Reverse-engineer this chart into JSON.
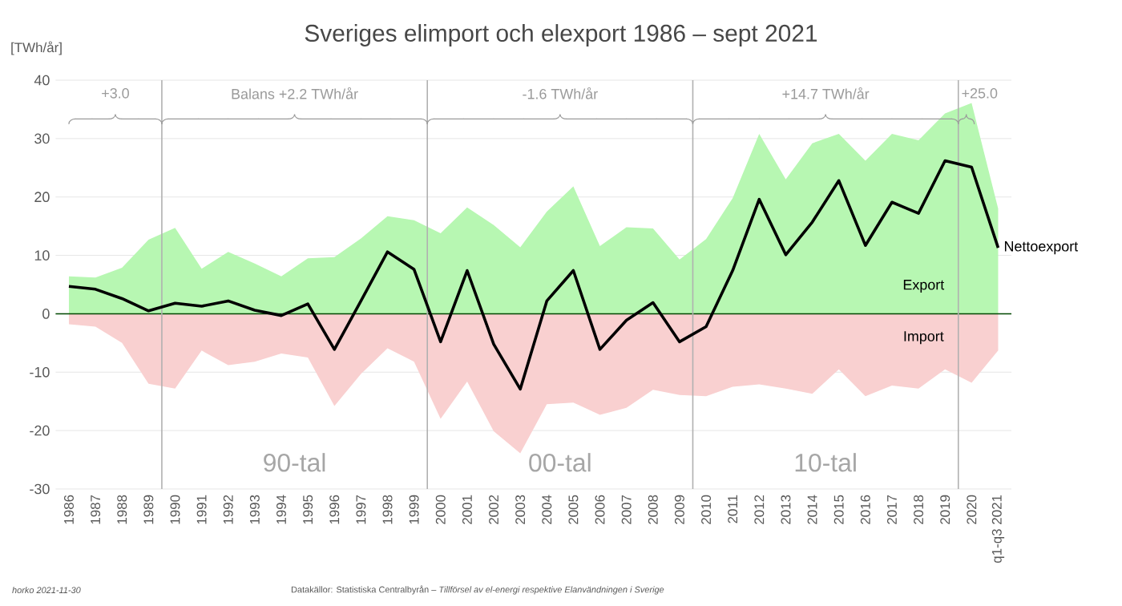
{
  "chart_data": {
    "type": "area",
    "title": "Sveriges elimport och elexport 1986 – sept 2021",
    "categories": [
      "1986",
      "1987",
      "1988",
      "1989",
      "1990",
      "1991",
      "1992",
      "1993",
      "1994",
      "1995",
      "1996",
      "1997",
      "1998",
      "1999",
      "2000",
      "2001",
      "2002",
      "2003",
      "2004",
      "2005",
      "2006",
      "2007",
      "2008",
      "2009",
      "2010",
      "2011",
      "2012",
      "2013",
      "2014",
      "2015",
      "2016",
      "2017",
      "2018",
      "2019",
      "2020",
      "q1-q3 2021"
    ],
    "series": [
      {
        "name": "Export",
        "color": "#b7f7b2",
        "values": [
          6.4,
          6.2,
          7.9,
          12.7,
          14.7,
          7.7,
          10.6,
          8.6,
          6.4,
          9.5,
          9.7,
          12.9,
          16.7,
          16.0,
          13.8,
          18.2,
          15.2,
          11.4,
          17.5,
          21.8,
          11.6,
          14.8,
          14.6,
          9.3,
          12.8,
          19.8,
          30.8,
          23.0,
          29.2,
          30.8,
          26.2,
          30.8,
          29.7,
          34.3,
          36.1,
          18.0
        ]
      },
      {
        "name": "Import",
        "color": "#f9d0d0",
        "values": [
          -1.8,
          -2.2,
          -5.0,
          -12.0,
          -12.8,
          -6.3,
          -8.8,
          -8.2,
          -6.8,
          -7.5,
          -15.8,
          -10.3,
          -5.9,
          -8.2,
          -18.0,
          -11.6,
          -20.1,
          -23.9,
          -15.5,
          -15.2,
          -17.3,
          -16.1,
          -13.0,
          -13.9,
          -14.1,
          -12.5,
          -12.1,
          -12.8,
          -13.7,
          -9.5,
          -14.1,
          -12.3,
          -12.8,
          -9.5,
          -11.8,
          -6.3
        ]
      },
      {
        "name": "Nettoexport",
        "type": "line",
        "color": "#000000",
        "values": [
          4.7,
          4.2,
          2.6,
          0.5,
          1.8,
          1.3,
          2.2,
          0.6,
          -0.3,
          1.7,
          -6.1,
          2.2,
          10.6,
          7.6,
          -4.8,
          7.4,
          -5.2,
          -12.9,
          2.2,
          7.4,
          -6.1,
          -1.1,
          1.9,
          -4.8,
          -2.2,
          7.4,
          19.6,
          10.1,
          15.7,
          22.8,
          11.7,
          19.1,
          17.2,
          26.2,
          25.1,
          11.3
        ]
      }
    ],
    "ylim": [
      -30,
      40
    ],
    "yticks": [
      -30,
      -20,
      -10,
      0,
      10,
      20,
      30,
      40
    ],
    "grid": "y",
    "legend": false,
    "annotations": [
      "[TWh/år]",
      "+3.0",
      "Balans +2.2 TWh/år",
      "-1.6 TWh/år",
      "+14.7 TWh/år",
      "+25.0",
      "90-tal",
      "00-tal",
      "10-tal",
      "horko 2021-11-30",
      "Datakällor: Statistiska Centralbyrån – *Tillförsel av el-energi respektive Elanvändningen i Sverige*"
    ]
  }
}
